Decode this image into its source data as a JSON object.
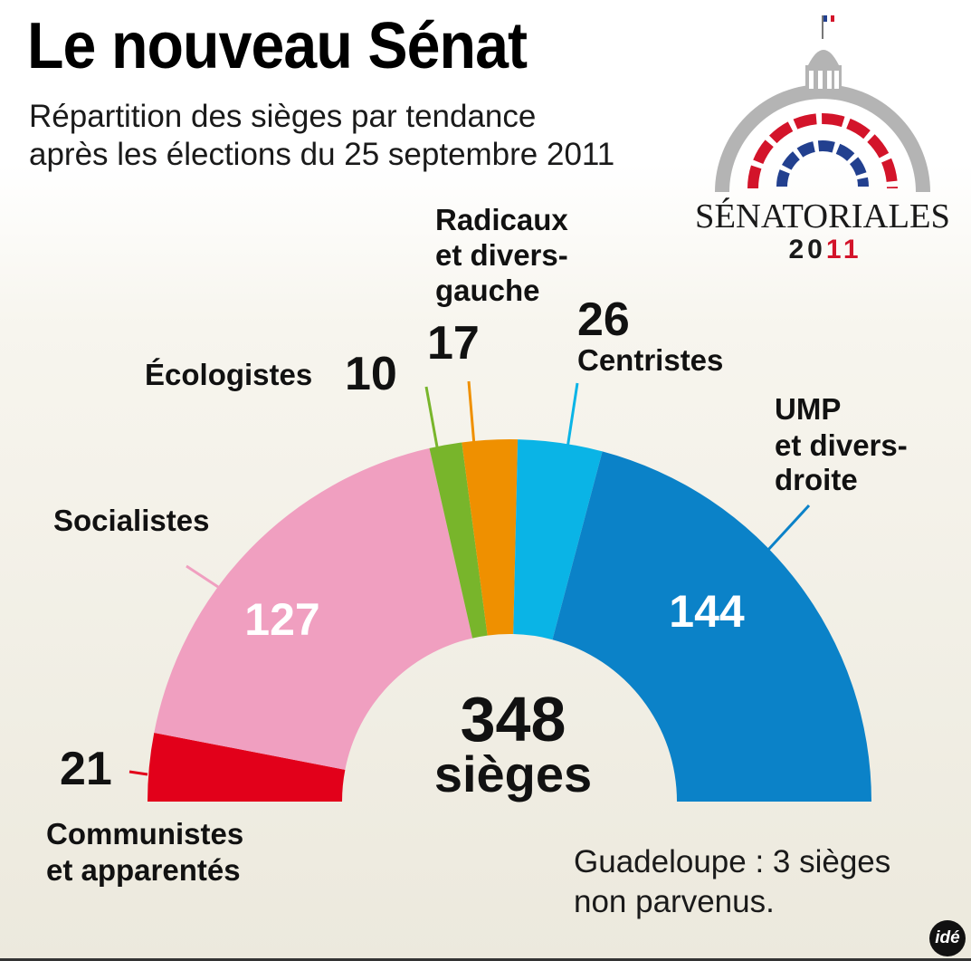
{
  "title": "Le nouveau Sénat",
  "subtitle_line1": "Répartition des sièges par tendance",
  "subtitle_line2": "après les élections du 25 septembre 2011",
  "logo": {
    "word": "SÉNATORIALES",
    "year_a": "20",
    "year_b": "11",
    "icon": "senate-dome-icon"
  },
  "total": {
    "value": "348",
    "unit": "sièges"
  },
  "note_line1": "Guadeloupe : 3 sièges",
  "note_line2": "non parvenus.",
  "credit": "idé",
  "chart_data": {
    "type": "pie",
    "variant": "semicircle",
    "title": "Le nouveau Sénat",
    "categories": [
      "Communistes et apparentés",
      "Socialistes",
      "Écologistes",
      "Radicaux et divers-gauche",
      "Centristes",
      "UMP et divers-droite"
    ],
    "values": [
      21,
      127,
      10,
      17,
      26,
      144
    ],
    "colors": [
      "#e2001a",
      "#f09fc0",
      "#78b52b",
      "#ef9000",
      "#0ab4e6",
      "#0b82c8"
    ],
    "total": 348,
    "labels": [
      {
        "value": "21",
        "name_lines": [
          "Communistes",
          "et apparentés"
        ]
      },
      {
        "value": "127",
        "name_lines": [
          "Socialistes"
        ]
      },
      {
        "value": "10",
        "name_lines": [
          "Écologistes"
        ]
      },
      {
        "value": "17",
        "name_lines": [
          "Radicaux",
          "et divers-",
          "gauche"
        ]
      },
      {
        "value": "26",
        "name_lines": [
          "Centristes"
        ]
      },
      {
        "value": "144",
        "name_lines": [
          "UMP",
          "et divers-",
          "droite"
        ]
      }
    ]
  }
}
